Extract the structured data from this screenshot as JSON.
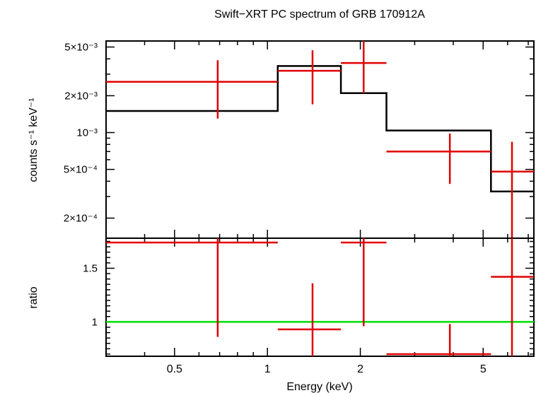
{
  "chart_data": {
    "title": "Swift−XRT PC spectrum of GRB 170912A",
    "xlabel": "Energy (keV)",
    "xscale": "log",
    "xlim": [
      0.3,
      7.3
    ],
    "x_ticks": [
      {
        "value": 0.5,
        "label": "0.5"
      },
      {
        "value": 1,
        "label": "1"
      },
      {
        "value": 2,
        "label": "2"
      },
      {
        "value": 5,
        "label": "5"
      }
    ],
    "panels": [
      {
        "name": "spectrum",
        "type": "scatter",
        "ylabel": "counts s⁻¹ keV⁻¹",
        "yscale": "log",
        "ylim": [
          0.000137,
          0.0056
        ],
        "y_ticks": [
          {
            "value": 0.005,
            "label": "5×10⁻³"
          },
          {
            "value": 0.002,
            "label": "2×10⁻³"
          },
          {
            "value": 0.001,
            "label": "10⁻³"
          },
          {
            "value": 0.0005,
            "label": "5×10⁻⁴"
          },
          {
            "value": 0.0002,
            "label": "2×10⁻⁴"
          }
        ],
        "data_points": [
          {
            "x": 0.69,
            "xlo": 0.3,
            "xhi": 1.08,
            "y": 0.0026,
            "ylo": 0.0013,
            "yhi": 0.0039
          },
          {
            "x": 1.4,
            "xlo": 1.08,
            "xhi": 1.73,
            "y": 0.0032,
            "ylo": 0.0017,
            "yhi": 0.0047
          },
          {
            "x": 2.05,
            "xlo": 1.73,
            "xhi": 2.43,
            "y": 0.0037,
            "ylo": 0.0021,
            "yhi": 0.0056
          },
          {
            "x": 3.9,
            "xlo": 2.43,
            "xhi": 5.3,
            "y": 0.0007,
            "ylo": 0.00038,
            "yhi": 0.00098
          },
          {
            "x": 6.2,
            "xlo": 5.3,
            "xhi": 7.3,
            "y": 0.00048,
            "ylo": 0.000137,
            "yhi": 0.00084
          }
        ],
        "model_steps": [
          {
            "xlo": 0.3,
            "xhi": 1.08,
            "y": 0.0015
          },
          {
            "xlo": 1.08,
            "xhi": 1.73,
            "y": 0.0035
          },
          {
            "xlo": 1.73,
            "xhi": 2.43,
            "y": 0.0021
          },
          {
            "xlo": 2.43,
            "xhi": 5.3,
            "y": 0.00104
          },
          {
            "xlo": 5.3,
            "xhi": 7.3,
            "y": 0.00033
          }
        ]
      },
      {
        "name": "ratio",
        "type": "scatter",
        "ylabel": "ratio",
        "yscale": "linear",
        "ylim": [
          0.68,
          1.78
        ],
        "y_ticks": [
          {
            "value": 1,
            "label": "1"
          },
          {
            "value": 1.5,
            "label": "1.5"
          }
        ],
        "reference_line": 1,
        "data_points": [
          {
            "x": 0.69,
            "xlo": 0.3,
            "xhi": 1.08,
            "y": 1.74,
            "ylo": 0.86,
            "yhi": 1.78
          },
          {
            "x": 1.4,
            "xlo": 1.08,
            "xhi": 1.73,
            "y": 0.93,
            "ylo": 0.68,
            "yhi": 1.36
          },
          {
            "x": 2.05,
            "xlo": 1.73,
            "xhi": 2.43,
            "y": 1.74,
            "ylo": 0.96,
            "yhi": 1.78
          },
          {
            "x": 3.9,
            "xlo": 2.43,
            "xhi": 5.3,
            "y": 0.7,
            "ylo": 0.68,
            "yhi": 0.98
          },
          {
            "x": 6.2,
            "xlo": 5.3,
            "xhi": 7.3,
            "y": 1.42,
            "ylo": 0.68,
            "yhi": 1.78
          }
        ]
      }
    ],
    "colors": {
      "data": "#e00000",
      "model": "#000000",
      "reference": "#00e000"
    }
  }
}
